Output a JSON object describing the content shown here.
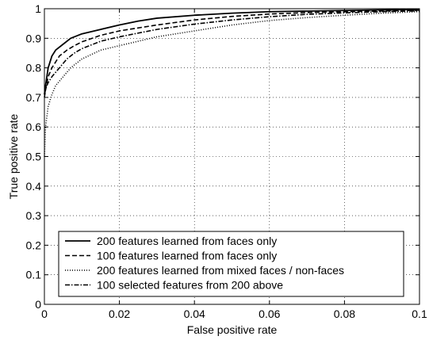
{
  "chart_data": {
    "type": "line",
    "title": "",
    "xlabel": "False positive rate",
    "ylabel": "True positive rate",
    "xlim": [
      0,
      0.1
    ],
    "ylim": [
      0,
      1
    ],
    "xticks": [
      0,
      0.02,
      0.04,
      0.06,
      0.08,
      0.1
    ],
    "xtick_labels": [
      "0",
      "0.02",
      "0.04",
      "0.06",
      "0.08",
      "0.1"
    ],
    "yticks": [
      0,
      0.1,
      0.2,
      0.3,
      0.4,
      0.5,
      0.6,
      0.7,
      0.8,
      0.9,
      1
    ],
    "ytick_labels": [
      "0",
      "0.1",
      "0.2",
      "0.3",
      "0.4",
      "0.5",
      "0.6",
      "0.7",
      "0.8",
      "0.9",
      "1"
    ],
    "grid": true,
    "legend_position": "bottom-center",
    "series": [
      {
        "name": "200 features learned from faces only",
        "style": "solid",
        "color": "#000000",
        "x": [
          0,
          0.0003,
          0.001,
          0.002,
          0.003,
          0.005,
          0.007,
          0.01,
          0.015,
          0.02,
          0.025,
          0.03,
          0.04,
          0.05,
          0.06,
          0.07,
          0.08,
          0.09,
          0.1
        ],
        "y": [
          0.71,
          0.74,
          0.8,
          0.84,
          0.86,
          0.88,
          0.9,
          0.915,
          0.93,
          0.945,
          0.958,
          0.968,
          0.978,
          0.985,
          0.99,
          0.992,
          0.994,
          0.996,
          0.997
        ]
      },
      {
        "name": "100 features learned from faces only",
        "style": "dashed",
        "color": "#000000",
        "x": [
          0,
          0.0005,
          0.001,
          0.002,
          0.004,
          0.006,
          0.008,
          0.01,
          0.015,
          0.02,
          0.03,
          0.04,
          0.05,
          0.06,
          0.07,
          0.08,
          0.09,
          0.1
        ],
        "y": [
          0.7,
          0.74,
          0.77,
          0.8,
          0.84,
          0.86,
          0.875,
          0.888,
          0.91,
          0.925,
          0.945,
          0.962,
          0.974,
          0.982,
          0.987,
          0.99,
          0.992,
          0.995
        ]
      },
      {
        "name": "200 features learned from mixed faces / non-faces",
        "style": "dotted",
        "color": "#000000",
        "x": [
          0,
          0.0003,
          0.001,
          0.002,
          0.003,
          0.005,
          0.007,
          0.01,
          0.015,
          0.02,
          0.03,
          0.04,
          0.05,
          0.06,
          0.07,
          0.08,
          0.09,
          0.1
        ],
        "y": [
          0.5,
          0.6,
          0.67,
          0.71,
          0.74,
          0.77,
          0.8,
          0.83,
          0.86,
          0.875,
          0.905,
          0.925,
          0.945,
          0.96,
          0.97,
          0.978,
          0.985,
          0.99
        ]
      },
      {
        "name": "100 selected features from 200 above",
        "style": "dashdot",
        "color": "#000000",
        "x": [
          0,
          0.0005,
          0.001,
          0.002,
          0.004,
          0.006,
          0.008,
          0.01,
          0.015,
          0.02,
          0.03,
          0.04,
          0.05,
          0.06,
          0.07,
          0.08,
          0.09,
          0.1
        ],
        "y": [
          0.71,
          0.735,
          0.75,
          0.77,
          0.8,
          0.83,
          0.85,
          0.865,
          0.89,
          0.905,
          0.93,
          0.948,
          0.962,
          0.973,
          0.981,
          0.986,
          0.99,
          0.993
        ]
      }
    ]
  }
}
